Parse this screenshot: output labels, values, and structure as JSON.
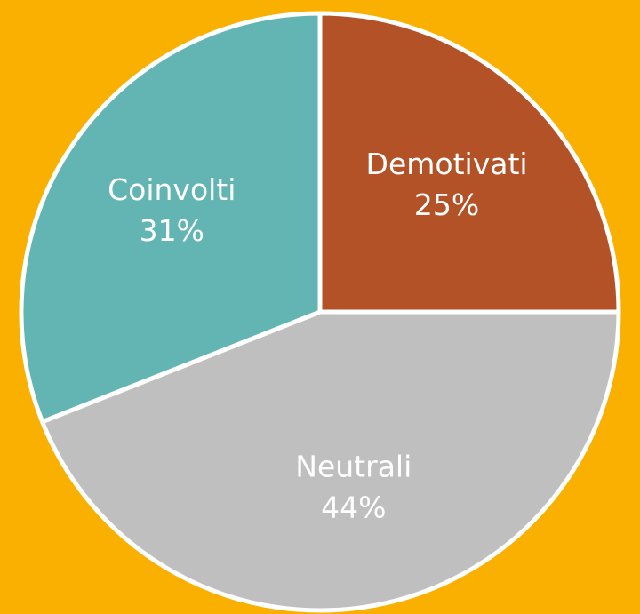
{
  "chart_data": {
    "type": "pie",
    "categories": [
      "Demotivati",
      "Neutrali",
      "Coinvolti"
    ],
    "values": [
      25,
      44,
      31
    ],
    "value_labels": [
      "25%",
      "44%",
      "31%"
    ],
    "colors": [
      "#b35226",
      "#bfbfbf",
      "#62b5b3"
    ]
  }
}
